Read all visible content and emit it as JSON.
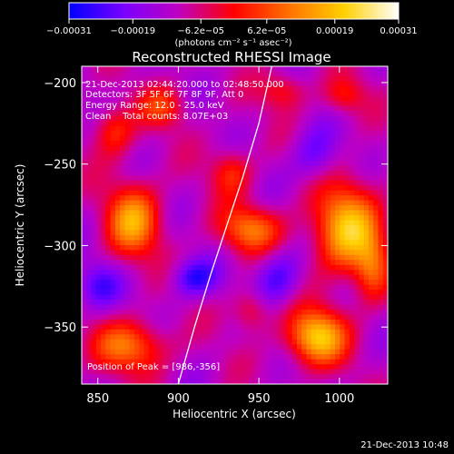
{
  "chart_data": {
    "type": "heatmap",
    "title": "Reconstructed RHESSI Image",
    "xlabel": "Heliocentric X (arcsec)",
    "ylabel": "Heliocentric Y (arcsec)",
    "xlim": [
      840,
      1030
    ],
    "ylim": [
      -385,
      -190
    ],
    "x_ticks": [
      850,
      900,
      950,
      1000
    ],
    "y_ticks": [
      -350,
      -300,
      -250,
      -200
    ],
    "x_tick_labels": [
      "850",
      "900",
      "950",
      "1000"
    ],
    "y_tick_labels": [
      "−350",
      "−300",
      "−250",
      "−200"
    ],
    "colorbar": {
      "min": -0.00031,
      "max": 0.00031,
      "ticks": [
        -0.00031,
        -0.00019,
        -6.2e-05,
        6.2e-05,
        0.00019,
        0.00031
      ],
      "tick_labels": [
        "−0.00031",
        "−0.00019",
        "−6.2e−05",
        "6.2e−05",
        "0.00019",
        "0.00031"
      ],
      "units_label": "(photons cm⁻² s⁻¹ asec⁻²)",
      "colors": [
        "#0000ff",
        "#7a00ff",
        "#c000c0",
        "#ff0000",
        "#ff7000",
        "#ffd000",
        "#ffffff"
      ]
    },
    "annotations": {
      "time_range": "21-Dec-2013 02:44:20.000 to 02:48:50.000",
      "detectors": "Detectors: 3F 5F 6F 7F 8F 9F, Att 0",
      "energy": "Energy Range: 12.0 - 25.0 keV",
      "clean": "Clean    Total counts: 8.07E+03",
      "peak": "Position of Peak = [986,-356]"
    },
    "limb_curve": {
      "x": [
        900,
        910,
        920,
        930,
        940,
        950,
        958
      ],
      "y": [
        -385,
        -350,
        -318,
        -288,
        -258,
        -225,
        -190
      ]
    },
    "blobs": [
      {
        "x": 872,
        "y": -285,
        "sx": 12,
        "sy": 16,
        "amp": 0.9
      },
      {
        "x": 860,
        "y": -230,
        "sx": 9,
        "sy": 11,
        "amp": 0.55
      },
      {
        "x": 890,
        "y": -215,
        "sx": 10,
        "sy": 9,
        "amp": 0.5
      },
      {
        "x": 965,
        "y": -205,
        "sx": 10,
        "sy": 8,
        "amp": 0.45
      },
      {
        "x": 1003,
        "y": -208,
        "sx": 9,
        "sy": 8,
        "amp": 0.45
      },
      {
        "x": 1005,
        "y": -290,
        "sx": 15,
        "sy": 20,
        "amp": 1.05
      },
      {
        "x": 945,
        "y": -290,
        "sx": 14,
        "sy": 10,
        "amp": 0.75
      },
      {
        "x": 933,
        "y": -255,
        "sx": 9,
        "sy": 10,
        "amp": 0.5
      },
      {
        "x": 986,
        "y": -356,
        "sx": 13,
        "sy": 12,
        "amp": 1.1
      },
      {
        "x": 870,
        "y": -362,
        "sx": 16,
        "sy": 11,
        "amp": 0.75
      },
      {
        "x": 945,
        "y": -340,
        "sx": 8,
        "sy": 9,
        "amp": 0.45
      },
      {
        "x": 1020,
        "y": -315,
        "sx": 7,
        "sy": 14,
        "amp": 0.5
      },
      {
        "x": 910,
        "y": -320,
        "sx": 10,
        "sy": 8,
        "amp": -0.55
      },
      {
        "x": 850,
        "y": -325,
        "sx": 10,
        "sy": 10,
        "amp": -0.45
      },
      {
        "x": 962,
        "y": -320,
        "sx": 10,
        "sy": 12,
        "amp": -0.5
      },
      {
        "x": 985,
        "y": -245,
        "sx": 10,
        "sy": 12,
        "amp": -0.4
      }
    ]
  },
  "footer": {
    "date_stamp": "21-Dec-2013 10:48"
  }
}
